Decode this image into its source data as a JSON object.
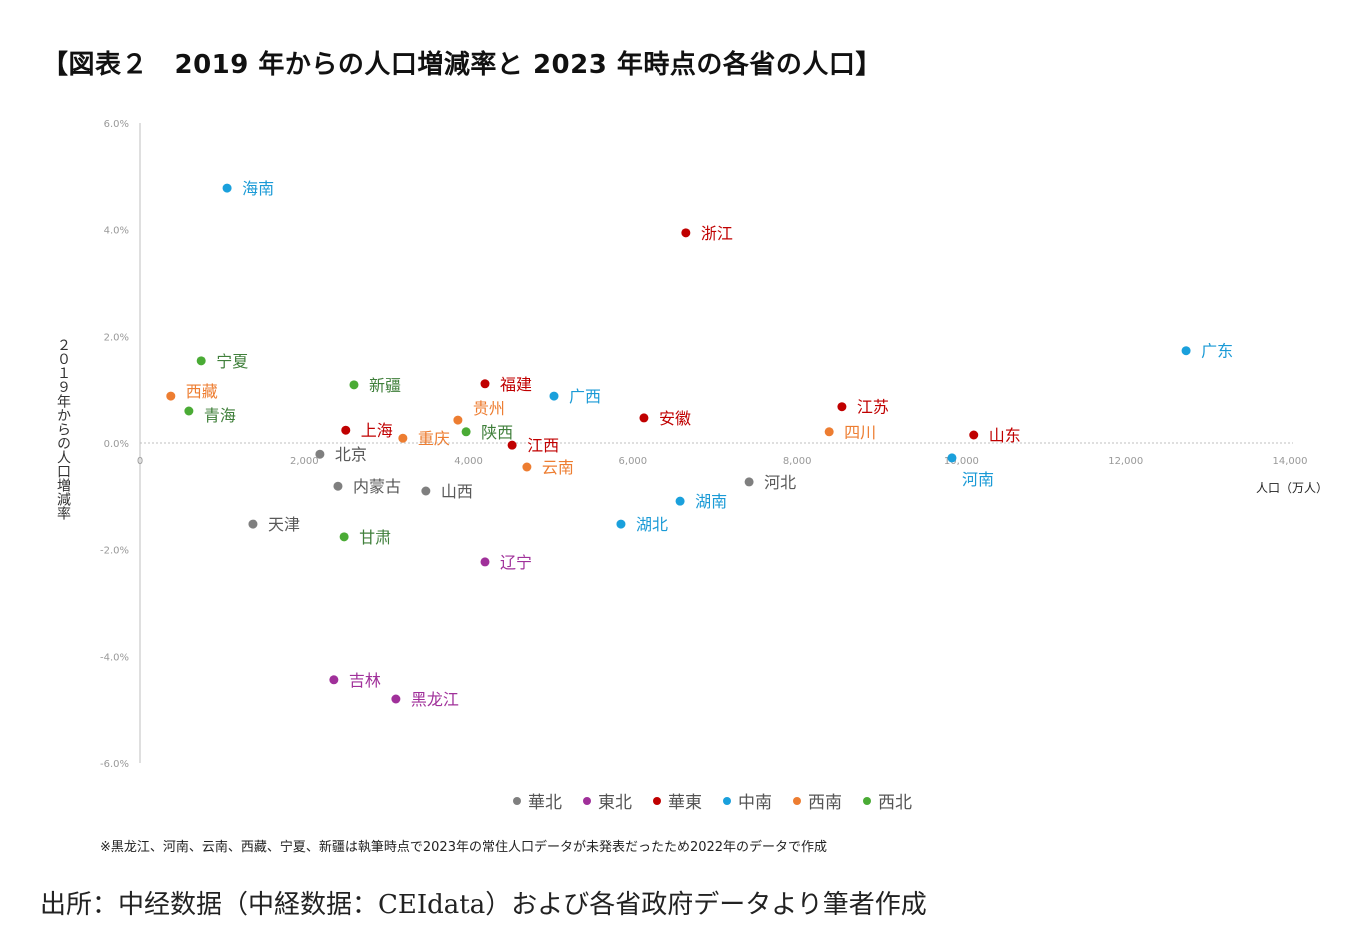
{
  "title": "【図表２　2019 年からの人口増減率と 2023 年時点の各省の人口】",
  "note": "※黒龙江、河南、云南、西藏、宁夏、新疆は執筆時点で2023年の常住人口データが未発表だったため2022年のデータで作成",
  "source": "出所：中经数据（中経数据：CEIdata）および各省政府データより筆者作成",
  "chart_data": {
    "type": "scatter",
    "xlabel": "人口（万人）",
    "ylabel": "２０１９年からの人口増減率",
    "xlim": [
      0,
      14000
    ],
    "ylim": [
      -6,
      6
    ],
    "xticks": [
      "0",
      "2,000",
      "4,000",
      "6,000",
      "8,000",
      "10,000",
      "12,000",
      "14,000"
    ],
    "yticks": [
      "6.0%",
      "4.0%",
      "2.0%",
      "0.0%",
      "-2.0%",
      "-4.0%",
      "-6.0%"
    ],
    "grid": false,
    "legend_position": "bottom",
    "groups": [
      {
        "name": "華北",
        "color": "#7f7f7f",
        "label_color": "#595959"
      },
      {
        "name": "東北",
        "color": "#a0309a",
        "label_color": "#a0309a"
      },
      {
        "name": "華東",
        "color": "#c00000",
        "label_color": "#c00000"
      },
      {
        "name": "中南",
        "color": "#1aa0dc",
        "label_color": "#1a9ad6"
      },
      {
        "name": "西南",
        "color": "#ed7d31",
        "label_color": "#ed7d31"
      },
      {
        "name": "西北",
        "color": "#4aab35",
        "label_color": "#3f7f3a"
      }
    ],
    "points": [
      {
        "name": "北京",
        "group": "華北",
        "x": 2190,
        "y": -0.21
      },
      {
        "name": "天津",
        "group": "華北",
        "x": 1375,
        "y": -1.52
      },
      {
        "name": "河北",
        "group": "華北",
        "x": 7415,
        "y": -0.73
      },
      {
        "name": "山西",
        "group": "華北",
        "x": 3480,
        "y": -0.9
      },
      {
        "name": "内蒙古",
        "group": "華北",
        "x": 2410,
        "y": -0.81
      },
      {
        "name": "辽宁",
        "group": "東北",
        "x": 4200,
        "y": -2.23
      },
      {
        "name": "吉林",
        "group": "東北",
        "x": 2360,
        "y": -4.44
      },
      {
        "name": "黑龙江",
        "group": "東北",
        "x": 3115,
        "y": -4.8
      },
      {
        "name": "上海",
        "group": "華東",
        "x": 2505,
        "y": 0.24
      },
      {
        "name": "江苏",
        "group": "華東",
        "x": 8545,
        "y": 0.68
      },
      {
        "name": "浙江",
        "group": "華東",
        "x": 6645,
        "y": 3.94
      },
      {
        "name": "安徽",
        "group": "華東",
        "x": 6135,
        "y": 0.47
      },
      {
        "name": "福建",
        "group": "華東",
        "x": 4200,
        "y": 1.11
      },
      {
        "name": "江西",
        "group": "華東",
        "x": 4530,
        "y": -0.04
      },
      {
        "name": "山东",
        "group": "華東",
        "x": 10150,
        "y": 0.15
      },
      {
        "name": "河南",
        "group": "中南",
        "x": 9885,
        "y": -0.28
      },
      {
        "name": "湖北",
        "group": "中南",
        "x": 5855,
        "y": -1.52
      },
      {
        "name": "湖南",
        "group": "中南",
        "x": 6575,
        "y": -1.09
      },
      {
        "name": "广东",
        "group": "中南",
        "x": 12735,
        "y": 1.73
      },
      {
        "name": "广西",
        "group": "中南",
        "x": 5040,
        "y": 0.88
      },
      {
        "name": "海南",
        "group": "中南",
        "x": 1060,
        "y": 4.78
      },
      {
        "name": "重庆",
        "group": "西南",
        "x": 3200,
        "y": 0.09
      },
      {
        "name": "四川",
        "group": "西南",
        "x": 8390,
        "y": 0.21
      },
      {
        "name": "贵州",
        "group": "西南",
        "x": 3870,
        "y": 0.43
      },
      {
        "name": "云南",
        "group": "西南",
        "x": 4710,
        "y": -0.45
      },
      {
        "name": "西藏",
        "group": "西南",
        "x": 375,
        "y": 0.88
      },
      {
        "name": "陕西",
        "group": "西北",
        "x": 3970,
        "y": 0.21
      },
      {
        "name": "甘肃",
        "group": "西北",
        "x": 2485,
        "y": -1.76
      },
      {
        "name": "青海",
        "group": "西北",
        "x": 595,
        "y": 0.6
      },
      {
        "name": "宁夏",
        "group": "西北",
        "x": 745,
        "y": 1.54
      },
      {
        "name": "新疆",
        "group": "西北",
        "x": 2605,
        "y": 1.09
      }
    ]
  }
}
